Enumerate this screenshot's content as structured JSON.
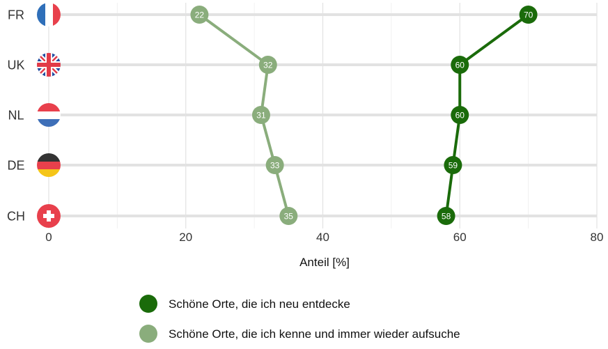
{
  "chart_data": {
    "type": "line",
    "orientation": "horizontal",
    "title": "",
    "xlabel": "Anteil [%]",
    "ylabel": "",
    "xlim": [
      0,
      80
    ],
    "x_ticks": [
      "0",
      "20",
      "40",
      "60",
      "80"
    ],
    "grid": true,
    "legend_placement": "bottom",
    "categories": [
      {
        "label": "FR",
        "flag": "flag-france-icon"
      },
      {
        "label": "UK",
        "flag": "flag-united-kingdom-icon"
      },
      {
        "label": "NL",
        "flag": "flag-netherlands-icon"
      },
      {
        "label": "DE",
        "flag": "flag-germany-icon"
      },
      {
        "label": "CH",
        "flag": "flag-switzerland-icon"
      }
    ],
    "series": [
      {
        "name": "Schöne Orte, die ich neu entdecke",
        "color": "#1a6b0a",
        "values": [
          70,
          60,
          60,
          59,
          58
        ],
        "labels": [
          "70",
          "60",
          "60",
          "59",
          "58"
        ]
      },
      {
        "name": "Schöne Orte, die ich kenne und immer wieder aufsuche",
        "color": "#8aad7c",
        "values": [
          22,
          32,
          31,
          33,
          35
        ],
        "labels": [
          "22",
          "32",
          "31",
          "33",
          "35"
        ]
      }
    ]
  }
}
